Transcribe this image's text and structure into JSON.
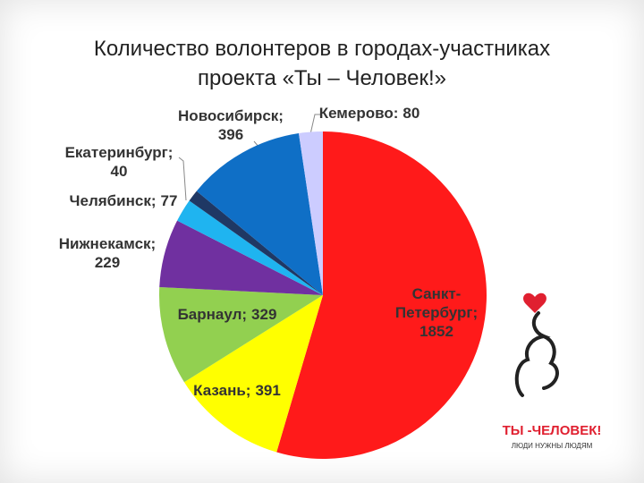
{
  "chart_data": {
    "type": "pie",
    "title": "Количество волонтеров в городах-участниках проекта «Ты – Человек!»",
    "categories": [
      "Санкт-Петербург;",
      "Казань;",
      "Барнаул;",
      "Нижнекамск;",
      "Челябинск;",
      "Екатеринбург;",
      "Новосибирск;",
      "Кемерово:"
    ],
    "values": [
      1852,
      391,
      329,
      229,
      77,
      40,
      396,
      80
    ],
    "colors": [
      "#ff1a1a",
      "#ffff00",
      "#92d050",
      "#7030a0",
      "#1fb4f0",
      "#1f3864",
      "#0f6fc6",
      "#ccccff"
    ]
  },
  "logo": {
    "title": "ТЫ -ЧЕЛОВЕК!",
    "slogan": "ЛЮДИ НУЖНЫ ЛЮДЯМ"
  }
}
